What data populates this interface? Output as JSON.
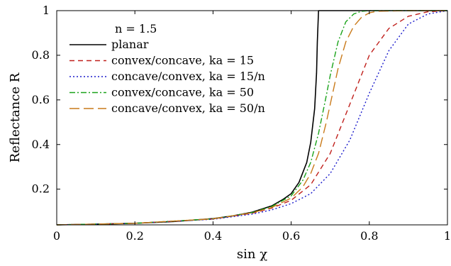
{
  "chart_data": {
    "type": "line",
    "xlabel": "sin χ",
    "ylabel": "Reflectance R",
    "xlim": [
      0,
      1
    ],
    "ylim": [
      0.04,
      1
    ],
    "x_ticks": [
      0,
      0.2,
      0.4,
      0.6,
      0.8,
      1
    ],
    "x_tick_labels": [
      "0",
      "0.2",
      "0.4",
      "0.6",
      "0.8",
      "1"
    ],
    "y_ticks": [
      0.2,
      0.4,
      0.6,
      0.8,
      1
    ],
    "y_tick_labels": [
      "0.2",
      "0.4",
      "0.6",
      "0.8",
      "1"
    ],
    "grid": false,
    "legend_position": "top-left",
    "legend_title": "n = 1.5",
    "series": [
      {
        "name": "planar",
        "color": "#000000",
        "dash": "solid",
        "x": [
          0,
          0.1,
          0.2,
          0.3,
          0.4,
          0.45,
          0.5,
          0.55,
          0.58,
          0.6,
          0.62,
          0.64,
          0.65,
          0.66,
          0.665,
          0.667,
          0.67,
          0.7,
          0.8,
          0.9,
          1
        ],
        "y": [
          0.04,
          0.043,
          0.047,
          0.055,
          0.068,
          0.08,
          0.097,
          0.125,
          0.155,
          0.18,
          0.23,
          0.32,
          0.41,
          0.56,
          0.72,
          0.86,
          1,
          1,
          1,
          1,
          1
        ]
      },
      {
        "name": "convex/concave, ka = 15",
        "color": "#c0201c",
        "dash": "7,5",
        "x": [
          0,
          0.2,
          0.4,
          0.5,
          0.55,
          0.6,
          0.65,
          0.7,
          0.75,
          0.8,
          0.85,
          0.9,
          0.95,
          1
        ],
        "y": [
          0.04,
          0.047,
          0.066,
          0.092,
          0.115,
          0.15,
          0.22,
          0.36,
          0.58,
          0.8,
          0.92,
          0.975,
          0.995,
          1
        ]
      },
      {
        "name": "concave/convex, ka = 15/n",
        "color": "#1a1acc",
        "dash": "2,3",
        "x": [
          0,
          0.2,
          0.4,
          0.5,
          0.55,
          0.6,
          0.65,
          0.7,
          0.75,
          0.8,
          0.85,
          0.9,
          0.95,
          1
        ],
        "y": [
          0.04,
          0.047,
          0.065,
          0.088,
          0.107,
          0.135,
          0.18,
          0.27,
          0.42,
          0.63,
          0.82,
          0.94,
          0.985,
          1
        ]
      },
      {
        "name": "convex/concave, ka = 50",
        "color": "#1aa31a",
        "dash": "8,3,2,3",
        "x": [
          0,
          0.2,
          0.4,
          0.5,
          0.55,
          0.6,
          0.63,
          0.65,
          0.67,
          0.69,
          0.7,
          0.72,
          0.74,
          0.76,
          0.78,
          0.8,
          0.9,
          1
        ],
        "y": [
          0.04,
          0.047,
          0.067,
          0.095,
          0.122,
          0.17,
          0.24,
          0.32,
          0.45,
          0.62,
          0.71,
          0.86,
          0.95,
          0.985,
          0.997,
          1,
          1,
          1
        ]
      },
      {
        "name": "concave/convex, ka = 50/n",
        "color": "#c97a1a",
        "dash": "14,6",
        "x": [
          0,
          0.2,
          0.4,
          0.5,
          0.55,
          0.6,
          0.63,
          0.65,
          0.67,
          0.69,
          0.7,
          0.72,
          0.74,
          0.76,
          0.78,
          0.8,
          0.82,
          0.9,
          1
        ],
        "y": [
          0.04,
          0.047,
          0.067,
          0.094,
          0.118,
          0.16,
          0.21,
          0.27,
          0.36,
          0.5,
          0.58,
          0.74,
          0.86,
          0.93,
          0.97,
          0.99,
          0.997,
          1,
          1
        ]
      }
    ]
  }
}
